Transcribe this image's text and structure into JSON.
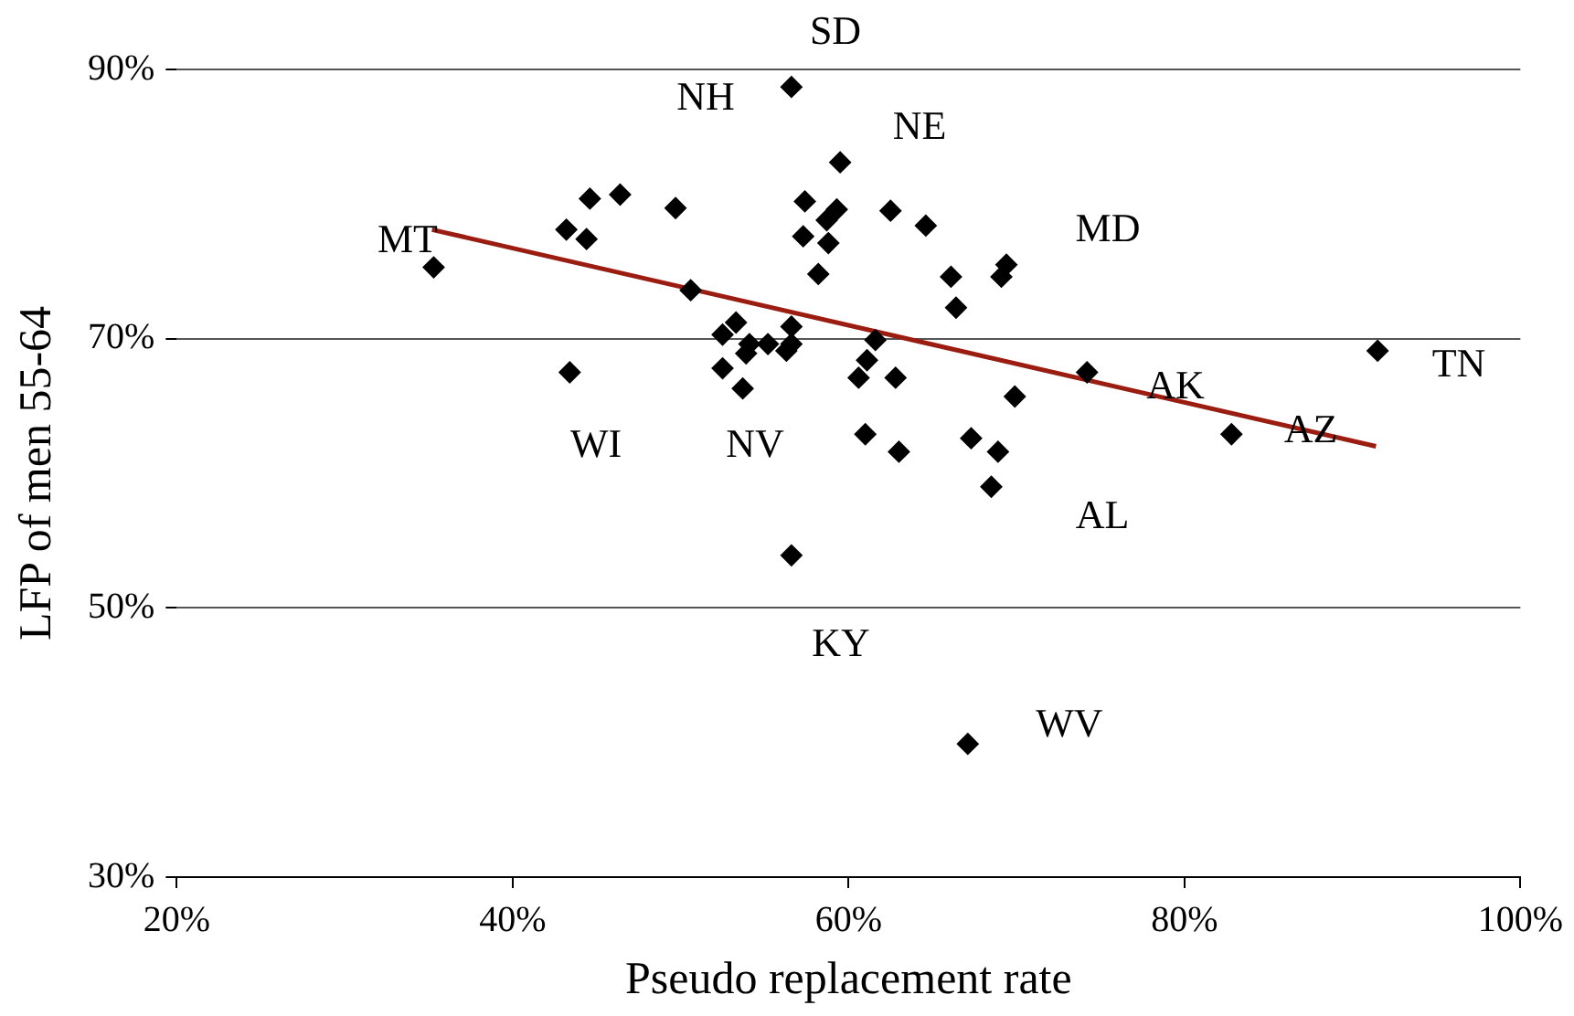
{
  "chart_data": {
    "type": "scatter",
    "xlabel": "Pseudo replacement rate",
    "ylabel": "LFP of men 55-64",
    "xlim": [
      20,
      100
    ],
    "xticks": [
      {
        "value": 20,
        "label": "20%"
      },
      {
        "value": 40,
        "label": "40%"
      },
      {
        "value": 60,
        "label": "60%"
      },
      {
        "value": 80,
        "label": "80%"
      },
      {
        "value": 100,
        "label": "100%"
      }
    ],
    "ylim": [
      30,
      90
    ],
    "yticks": [
      {
        "value": 30,
        "label": "30%"
      },
      {
        "value": 50,
        "label": "50%"
      },
      {
        "value": 70,
        "label": "70%"
      },
      {
        "value": 90,
        "label": "90%"
      }
    ],
    "grid": "y",
    "legend": false,
    "marker": "diamond",
    "series": [
      {
        "color": "#000000",
        "x": [
          35.3,
          44.6,
          46.4,
          43.2,
          44.4,
          49.7,
          50.6,
          43.4,
          53.3,
          52.5,
          54.1,
          53.9,
          55.2,
          52.5,
          53.7,
          56.6,
          56.6,
          56.3,
          56.6,
          57.3,
          59.5,
          57.4,
          59.3,
          58.7,
          58.8,
          58.2,
          62.5,
          64.6,
          66.1,
          66.4,
          69.1,
          69.4,
          61.6,
          61.1,
          60.6,
          62.8,
          69.9,
          74.2,
          61.0,
          63.0,
          67.3,
          68.9,
          68.5,
          82.8,
          91.5,
          56.6,
          67.1
        ],
        "values": [
          75.3,
          80.4,
          80.7,
          78.1,
          77.4,
          79.7,
          73.6,
          67.5,
          71.2,
          70.3,
          69.6,
          68.9,
          69.6,
          67.8,
          66.3,
          70.9,
          69.6,
          69.1,
          88.7,
          77.6,
          83.1,
          80.2,
          79.6,
          78.8,
          77.1,
          74.8,
          79.5,
          78.4,
          74.6,
          72.3,
          74.6,
          75.5,
          69.9,
          68.4,
          67.1,
          67.1,
          65.7,
          67.5,
          62.9,
          61.6,
          62.6,
          61.6,
          59.0,
          62.9,
          69.1,
          53.9,
          39.9
        ]
      },
      {
        "type": "line",
        "color": "#9b1c10",
        "marker": "none",
        "x": [
          35.2,
          91.4
        ],
        "values": [
          78.1,
          62.0
        ]
      }
    ],
    "annotations": [
      "SD",
      "NH",
      "NE",
      "MT",
      "MD",
      "TN",
      "AK",
      "AZ",
      "WI",
      "NV",
      "AL",
      "KY",
      "WV"
    ]
  }
}
